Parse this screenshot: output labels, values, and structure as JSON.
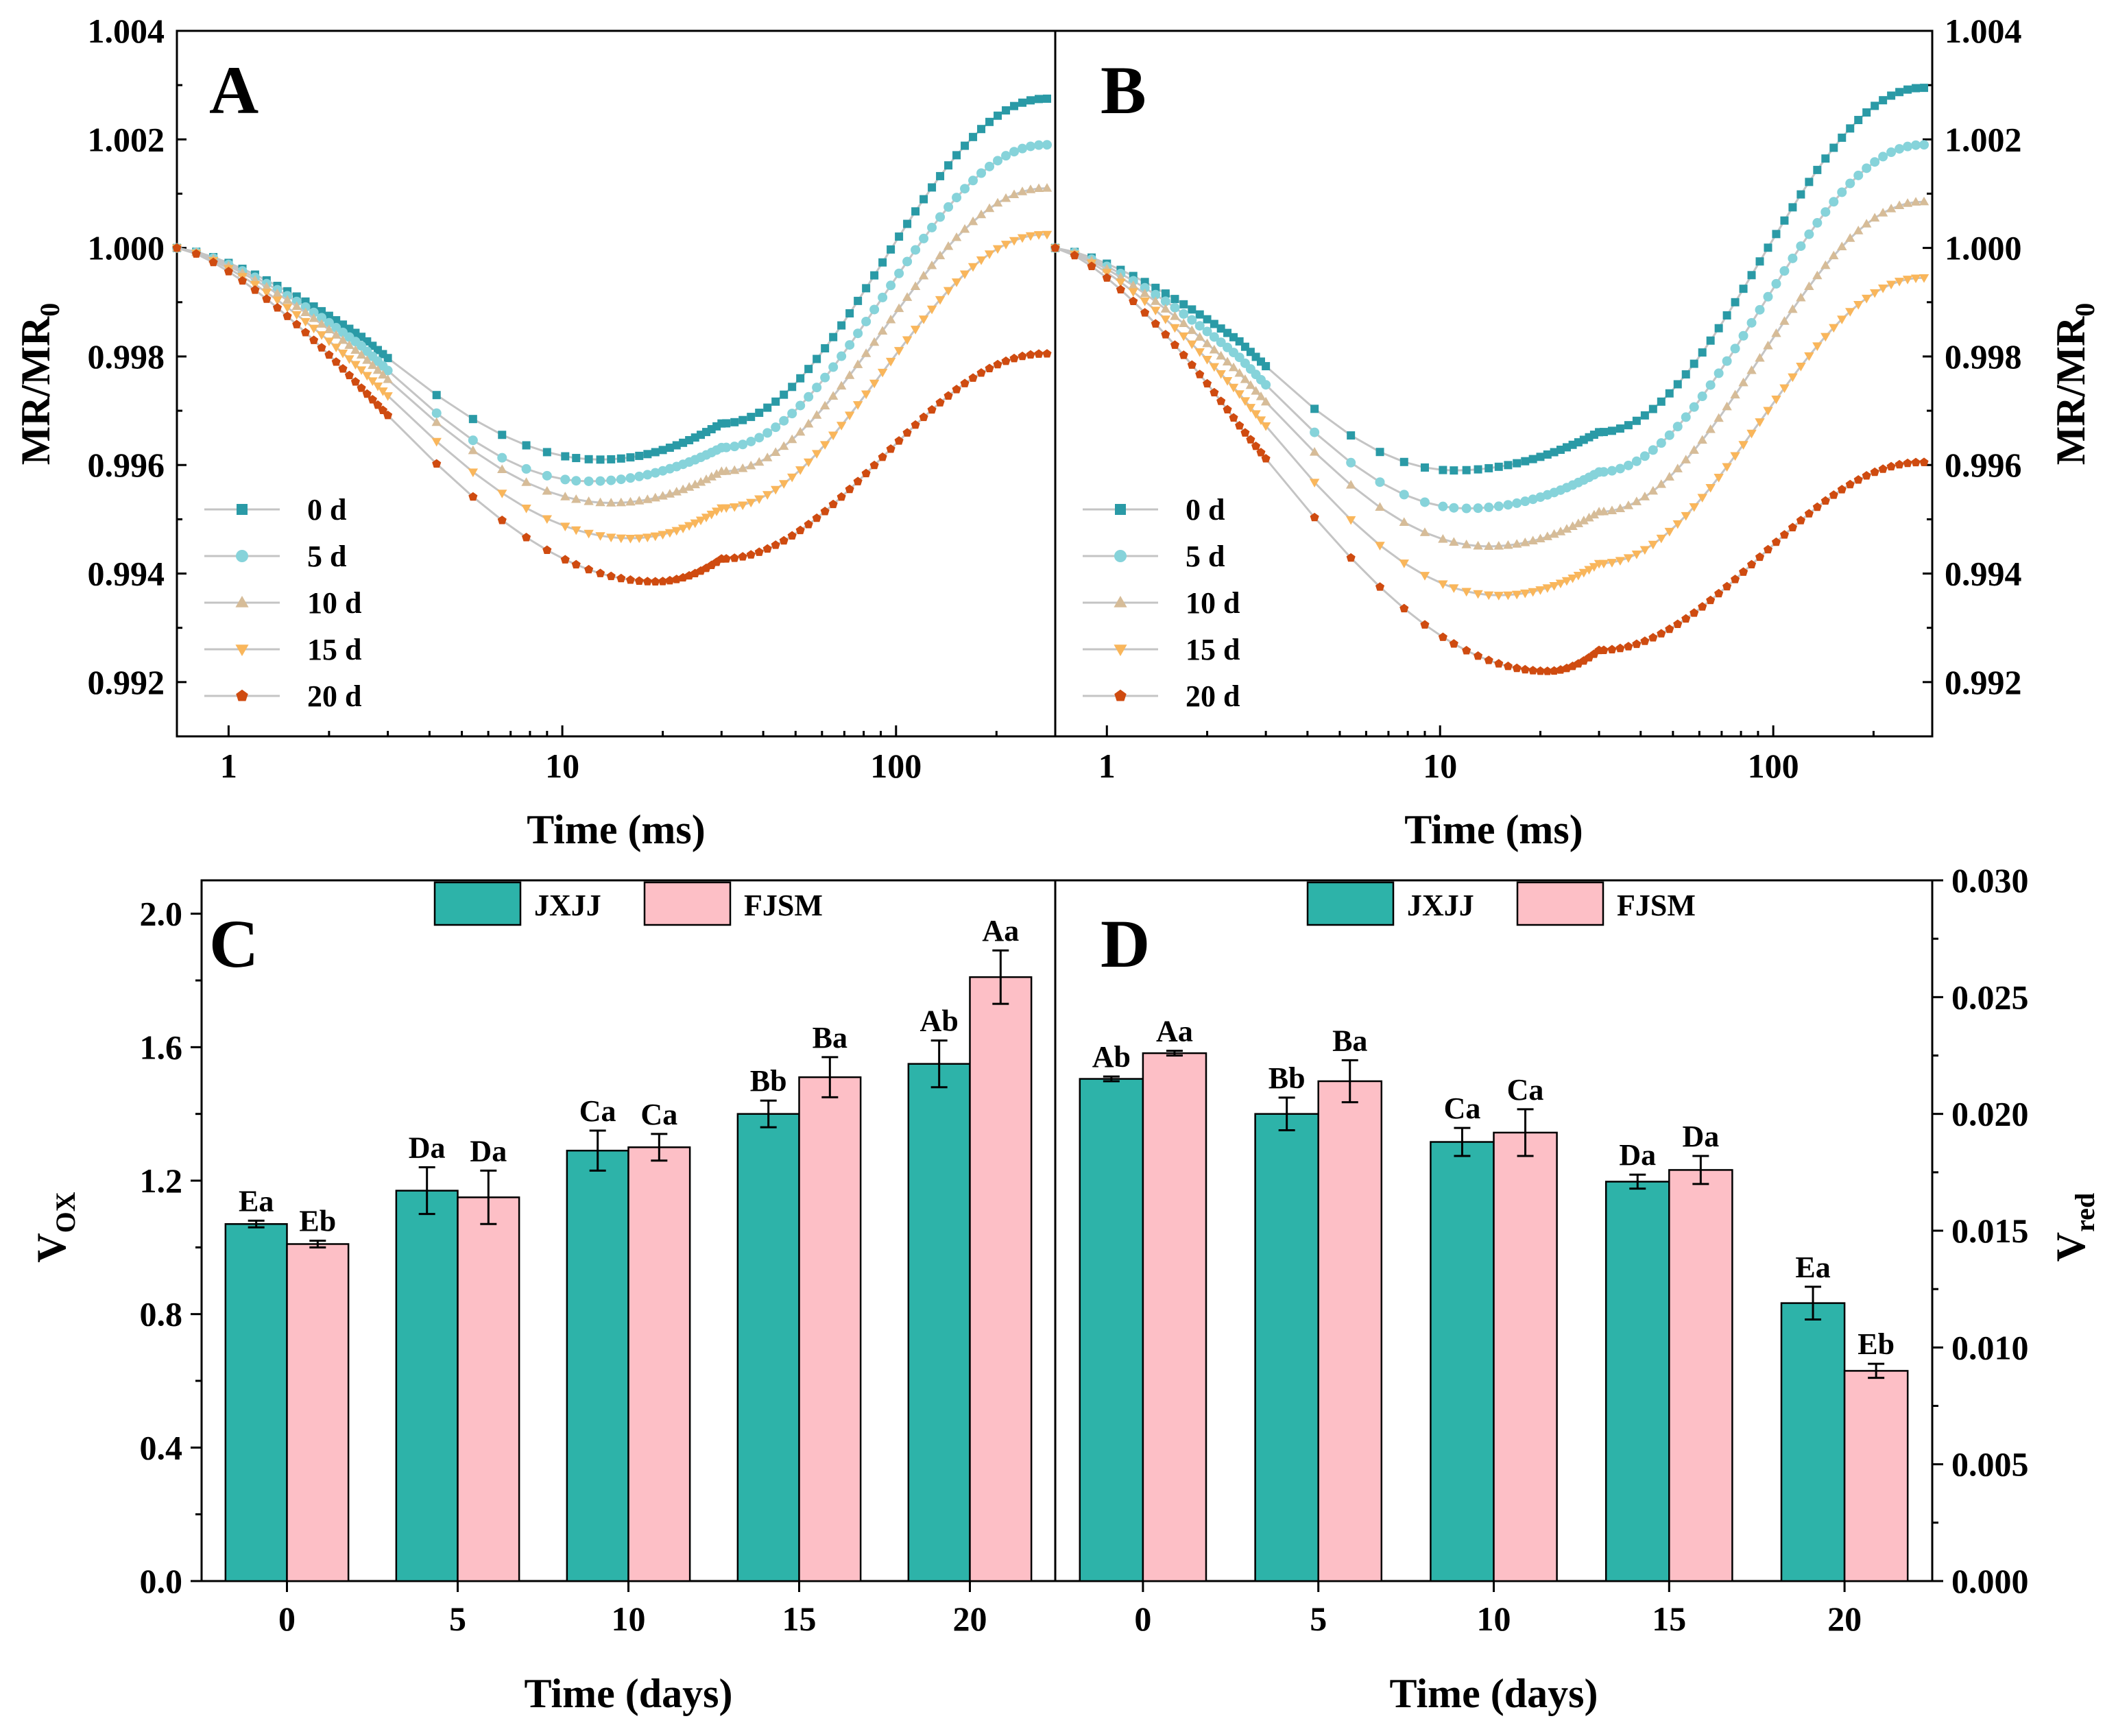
{
  "colors": {
    "d0": "#2a9aa6",
    "d5": "#86d3da",
    "d10": "#d6bc98",
    "d15": "#f9b65b",
    "d20": "#cf4b10",
    "JXJJ": "#2db3a9",
    "FJSM": "#fdbfc6"
  },
  "chart_data": [
    {
      "panel": "A",
      "type": "scatter",
      "title": "",
      "xlabel": "Time (ms)",
      "ylabel": "MR/MR",
      "ylabel_sub": "0",
      "xscale": "log",
      "xlim": [
        0.7,
        300
      ],
      "ylim": [
        0.991,
        1.004
      ],
      "x_ticks": [
        "1",
        "10",
        "100"
      ],
      "y_ticks": [
        "0.992",
        "0.994",
        "0.996",
        "0.998",
        "1.000",
        "1.002",
        "1.004"
      ],
      "legend_position": "lower-left",
      "series": [
        {
          "name": "0 d",
          "marker": "square",
          "min_t": 13,
          "min": 0.9961,
          "end": 1.00275
        },
        {
          "name": "5 d",
          "marker": "circle",
          "min_t": 12,
          "min": 0.9957,
          "end": 1.0019
        },
        {
          "name": "10 d",
          "marker": "triangle-up",
          "min_t": 14,
          "min": 0.9953,
          "end": 1.0011
        },
        {
          "name": "15 d",
          "marker": "triangle-down",
          "min_t": 16,
          "min": 0.99465,
          "end": 1.00025
        },
        {
          "name": "20 d",
          "marker": "pentagon",
          "min_t": 19,
          "min": 0.99385,
          "end": 0.99805
        }
      ]
    },
    {
      "panel": "B",
      "type": "scatter",
      "title": "",
      "xlabel": "Time (ms)",
      "ylabel": "MR/MR",
      "ylabel_sub": "0",
      "xscale": "log",
      "xlim": [
        0.7,
        300
      ],
      "ylim": [
        0.991,
        1.004
      ],
      "x_ticks": [
        "1",
        "10",
        "100"
      ],
      "y_ticks": [
        "0.992",
        "0.994",
        "0.996",
        "0.998",
        "1.000",
        "1.002",
        "1.004"
      ],
      "legend_position": "lower-left",
      "series": [
        {
          "name": "0 d",
          "marker": "square",
          "min_t": 11,
          "min": 0.9959,
          "end": 1.00295
        },
        {
          "name": "5 d",
          "marker": "circle",
          "min_t": 12,
          "min": 0.9952,
          "end": 1.0019
        },
        {
          "name": "10 d",
          "marker": "triangle-up",
          "min_t": 14,
          "min": 0.9945,
          "end": 1.00085
        },
        {
          "name": "15 d",
          "marker": "triangle-down",
          "min_t": 15,
          "min": 0.9936,
          "end": 0.99945
        },
        {
          "name": "20 d",
          "marker": "pentagon",
          "min_t": 21,
          "min": 0.9922,
          "end": 0.99605
        }
      ]
    },
    {
      "panel": "C",
      "type": "bar",
      "title": "",
      "xlabel": "Time (days)",
      "ylabel": "V",
      "ylabel_sub": "OX",
      "categories": [
        "0",
        "5",
        "10",
        "15",
        "20"
      ],
      "ylim": [
        0,
        2.1
      ],
      "y_ticks": [
        "0.0",
        "0.4",
        "0.8",
        "1.2",
        "1.6",
        "2.0"
      ],
      "legend_position": "top-center",
      "series": [
        {
          "name": "JXJJ",
          "values": [
            1.07,
            1.17,
            1.29,
            1.4,
            1.55
          ],
          "errors": [
            0.01,
            0.07,
            0.06,
            0.04,
            0.07
          ],
          "labels": [
            "Ea",
            "Da",
            "Ca",
            "Bb",
            "Ab"
          ]
        },
        {
          "name": "FJSM",
          "values": [
            1.01,
            1.15,
            1.3,
            1.51,
            1.81
          ],
          "errors": [
            0.01,
            0.08,
            0.04,
            0.06,
            0.08
          ],
          "labels": [
            "Eb",
            "Da",
            "Ca",
            "Ba",
            "Aa"
          ]
        }
      ]
    },
    {
      "panel": "D",
      "type": "bar",
      "title": "",
      "xlabel": "Time (days)",
      "ylabel": "V",
      "ylabel_sub": "red",
      "categories": [
        "0",
        "5",
        "10",
        "15",
        "20"
      ],
      "ylim": [
        0,
        0.03
      ],
      "y_ticks": [
        "0.000",
        "0.005",
        "0.010",
        "0.015",
        "0.020",
        "0.025",
        "0.030"
      ],
      "legend_position": "top-center",
      "series": [
        {
          "name": "JXJJ",
          "values": [
            0.0215,
            0.02,
            0.0188,
            0.0171,
            0.0119
          ],
          "errors": [
            0.0001,
            0.0007,
            0.0006,
            0.0003,
            0.0007
          ],
          "labels": [
            "Ab",
            "Bb",
            "Ca",
            "Da",
            "Ea"
          ]
        },
        {
          "name": "FJSM",
          "values": [
            0.0226,
            0.0214,
            0.0192,
            0.0176,
            0.009
          ],
          "errors": [
            0.0001,
            0.0009,
            0.001,
            0.0006,
            0.0003
          ],
          "labels": [
            "Aa",
            "Ba",
            "Ca",
            "Da",
            "Eb"
          ]
        }
      ]
    }
  ]
}
